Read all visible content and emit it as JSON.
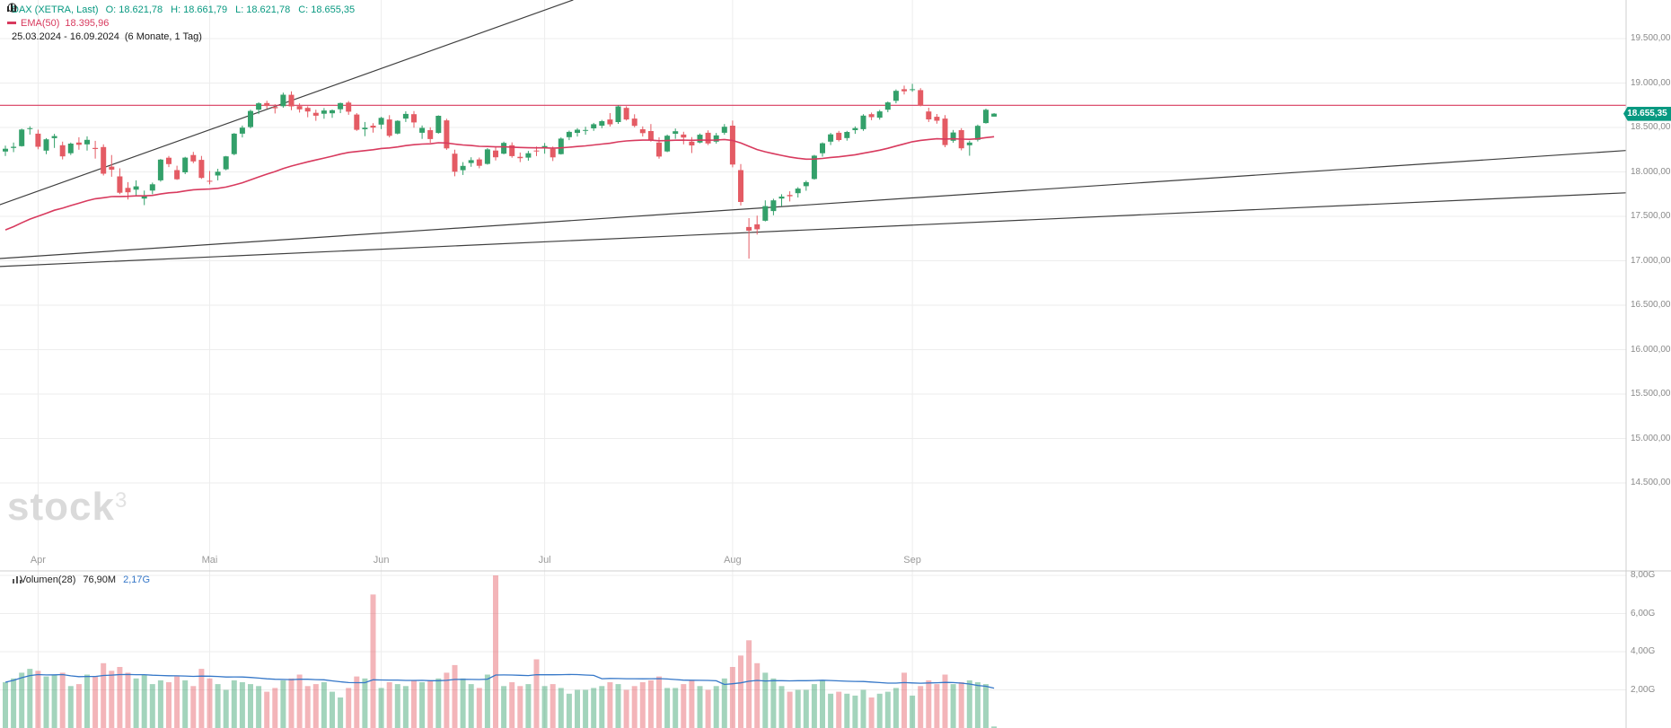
{
  "header": {
    "symbol": "DAX (XETRA, Last)",
    "ohlc": [
      {
        "label": "O:",
        "value": "18.621,78"
      },
      {
        "label": "H:",
        "value": "18.661,79"
      },
      {
        "label": "L:",
        "value": "18.621,78"
      },
      {
        "label": "C:",
        "value": "18.655,35"
      }
    ],
    "indicator": {
      "name": "EMA(50)",
      "value": "18.395,96"
    },
    "range": {
      "dates": "25.03.2024 - 16.09.2024",
      "interval": "(6 Monate, 1 Tag)"
    }
  },
  "price_axis": {
    "labels": [
      {
        "text": "19.500,00",
        "value": 19500
      },
      {
        "text": "19.000,00",
        "value": 19000
      },
      {
        "text": "18.500,00",
        "value": 18500
      },
      {
        "text": "18.000,00",
        "value": 18000
      },
      {
        "text": "17.500,00",
        "value": 17500
      },
      {
        "text": "17.000,00",
        "value": 17000
      },
      {
        "text": "16.500,00",
        "value": 16500
      },
      {
        "text": "16.000,00",
        "value": 16000
      },
      {
        "text": "15.500,00",
        "value": 15500
      },
      {
        "text": "15.000,00",
        "value": 15000
      },
      {
        "text": "14.500,00",
        "value": 14500
      }
    ],
    "badge": {
      "text": "18.655,35"
    }
  },
  "volume_axis": {
    "labels": [
      {
        "text": "8,00G",
        "value": 8
      },
      {
        "text": "6,00G",
        "value": 6
      },
      {
        "text": "4,00G",
        "value": 4
      },
      {
        "text": "2,00G",
        "value": 2
      }
    ]
  },
  "x_axis": {
    "months": [
      {
        "label": "Apr",
        "month": 4
      },
      {
        "label": "Mai",
        "month": 5
      },
      {
        "label": "Jun",
        "month": 6
      },
      {
        "label": "Jul",
        "month": 7
      },
      {
        "label": "Aug",
        "month": 8
      },
      {
        "label": "Sep",
        "month": 9
      }
    ]
  },
  "volume_header": {
    "name": "Volumen(28)",
    "current": "76,90M",
    "average": "2,17G"
  },
  "watermark": {
    "text": "stock",
    "sup": "3"
  },
  "colors": {
    "up": "#33a06a",
    "down": "#e45b64",
    "ema": "#d83a5e",
    "hline": "#d83a5e",
    "trend": "#3f3f3f",
    "volma": "#3577c8",
    "badge_bg": "#089981",
    "quote_text": "#089981",
    "axis_text": "#8a8a8a",
    "grid": "#ededed",
    "separator": "#cfcfcf"
  },
  "chart_data": {
    "type": "candlestick",
    "symbol": "DAX (XETRA)",
    "interval": "1 Tag",
    "date_start": "2024-03-25",
    "date_end": "2024-09-16",
    "price_ylim": [
      13570,
      19935
    ],
    "price_gridline_step": 500,
    "volume_unit": "G",
    "volume_ylim": [
      0,
      8.25
    ],
    "ema_period": 50,
    "ema_seed": 17310,
    "volume_ma_period": 28,
    "hline_price": 18750,
    "trendlines": [
      {
        "i1": -0.7,
        "p1": 17630,
        "i2": 69.5,
        "p2": 19935
      },
      {
        "i1": -0.7,
        "p1": 17025,
        "i2": 198.3,
        "p2": 18240
      },
      {
        "i1": -0.7,
        "p1": 16935,
        "i2": 198.3,
        "p2": 17765
      }
    ],
    "columns": [
      "date",
      "open",
      "high",
      "low",
      "close",
      "volume_G"
    ],
    "candles": [
      [
        "2024-03-25",
        18230,
        18295,
        18180,
        18261,
        2.4
      ],
      [
        "2024-03-26",
        18270,
        18330,
        18222,
        18283,
        2.6
      ],
      [
        "2024-03-27",
        18290,
        18487,
        18285,
        18477,
        2.9
      ],
      [
        "2024-03-28",
        18482,
        18513,
        18420,
        18492,
        3.1
      ],
      [
        "2024-04-02",
        18430,
        18475,
        18255,
        18283,
        3.0
      ],
      [
        "2024-04-03",
        18240,
        18380,
        18200,
        18367,
        2.7
      ],
      [
        "2024-04-04",
        18380,
        18428,
        18270,
        18403,
        2.8
      ],
      [
        "2024-04-05",
        18300,
        18340,
        18140,
        18175,
        2.9
      ],
      [
        "2024-04-08",
        18210,
        18330,
        18190,
        18318,
        2.2
      ],
      [
        "2024-04-09",
        18330,
        18390,
        18250,
        18305,
        2.3
      ],
      [
        "2024-04-10",
        18310,
        18400,
        18240,
        18361,
        2.8
      ],
      [
        "2024-04-11",
        18270,
        18350,
        18150,
        18258,
        2.7
      ],
      [
        "2024-04-12",
        18280,
        18310,
        17960,
        17980,
        3.4
      ],
      [
        "2024-04-15",
        18060,
        18190,
        17945,
        18026,
        3.0
      ],
      [
        "2024-04-16",
        17950,
        18040,
        17750,
        17766,
        3.2
      ],
      [
        "2024-04-17",
        17820,
        17885,
        17690,
        17770,
        2.9
      ],
      [
        "2024-04-18",
        17800,
        17905,
        17735,
        17837,
        2.6
      ],
      [
        "2024-04-19",
        17700,
        17790,
        17626,
        17737,
        2.8
      ],
      [
        "2024-04-22",
        17790,
        17880,
        17748,
        17861,
        2.3
      ],
      [
        "2024-04-23",
        17905,
        18145,
        17890,
        18138,
        2.5
      ],
      [
        "2024-04-24",
        18160,
        18180,
        18055,
        18088,
        2.4
      ],
      [
        "2024-04-25",
        18020,
        18070,
        17910,
        17917,
        2.7
      ],
      [
        "2024-04-26",
        17995,
        18170,
        17975,
        18161,
        2.5
      ],
      [
        "2024-04-29",
        18190,
        18225,
        18098,
        18118,
        2.2
      ],
      [
        "2024-04-30",
        18135,
        18180,
        17921,
        17932,
        3.1
      ],
      [
        "2024-05-02",
        17900,
        18010,
        17860,
        17897,
        2.6
      ],
      [
        "2024-05-03",
        17960,
        18035,
        17905,
        18002,
        2.3
      ],
      [
        "2024-05-06",
        18030,
        18180,
        18018,
        18175,
        2.0
      ],
      [
        "2024-05-07",
        18200,
        18437,
        18188,
        18430,
        2.5
      ],
      [
        "2024-05-08",
        18430,
        18521,
        18388,
        18498,
        2.4
      ],
      [
        "2024-05-09",
        18505,
        18699,
        18490,
        18686,
        2.3
      ],
      [
        "2024-05-10",
        18700,
        18784,
        18651,
        18772,
        2.2
      ],
      [
        "2024-05-13",
        18775,
        18801,
        18712,
        18742,
        1.9
      ],
      [
        "2024-05-14",
        18730,
        18762,
        18658,
        18716,
        2.1
      ],
      [
        "2024-05-15",
        18740,
        18892,
        18722,
        18869,
        2.5
      ],
      [
        "2024-05-16",
        18868,
        18906,
        18695,
        18738,
        2.6
      ],
      [
        "2024-05-17",
        18740,
        18772,
        18668,
        18704,
        2.8
      ],
      [
        "2024-05-21",
        18720,
        18738,
        18615,
        18680,
        2.2
      ],
      [
        "2024-05-22",
        18665,
        18700,
        18575,
        18633,
        2.3
      ],
      [
        "2024-05-23",
        18655,
        18718,
        18598,
        18691,
        2.4
      ],
      [
        "2024-05-24",
        18660,
        18702,
        18608,
        18694,
        1.9
      ],
      [
        "2024-05-27",
        18705,
        18780,
        18662,
        18775,
        1.6
      ],
      [
        "2024-05-28",
        18780,
        18798,
        18642,
        18678,
        2.1
      ],
      [
        "2024-05-29",
        18645,
        18662,
        18462,
        18473,
        2.7
      ],
      [
        "2024-05-30",
        18480,
        18562,
        18402,
        18497,
        2.6
      ],
      [
        "2024-05-31",
        18520,
        18548,
        18442,
        18498,
        7.0
      ],
      [
        "2024-06-03",
        18532,
        18620,
        18482,
        18608,
        2.1
      ],
      [
        "2024-06-04",
        18590,
        18638,
        18388,
        18406,
        2.4
      ],
      [
        "2024-06-05",
        18432,
        18581,
        18422,
        18575,
        2.3
      ],
      [
        "2024-06-06",
        18600,
        18682,
        18562,
        18653,
        2.2
      ],
      [
        "2024-06-07",
        18650,
        18684,
        18498,
        18557,
        2.5
      ],
      [
        "2024-06-10",
        18440,
        18522,
        18372,
        18495,
        2.4
      ],
      [
        "2024-06-11",
        18470,
        18502,
        18328,
        18370,
        2.5
      ],
      [
        "2024-06-12",
        18438,
        18636,
        18430,
        18631,
        2.6
      ],
      [
        "2024-06-13",
        18580,
        18598,
        18248,
        18265,
        2.9
      ],
      [
        "2024-06-14",
        18205,
        18250,
        17951,
        18002,
        3.3
      ],
      [
        "2024-06-17",
        18020,
        18110,
        17966,
        18068,
        2.6
      ],
      [
        "2024-06-18",
        18100,
        18165,
        18058,
        18132,
        2.3
      ],
      [
        "2024-06-19",
        18140,
        18162,
        18040,
        18068,
        2.1
      ],
      [
        "2024-06-20",
        18090,
        18268,
        18082,
        18254,
        2.8
      ],
      [
        "2024-06-21",
        18240,
        18278,
        18128,
        18164,
        8.0
      ],
      [
        "2024-06-24",
        18205,
        18340,
        18198,
        18326,
        2.2
      ],
      [
        "2024-06-25",
        18300,
        18332,
        18160,
        18178,
        2.4
      ],
      [
        "2024-06-26",
        18170,
        18218,
        18110,
        18155,
        2.2
      ],
      [
        "2024-06-27",
        18160,
        18236,
        18126,
        18210,
        2.3
      ],
      [
        "2024-06-28",
        18240,
        18285,
        18178,
        18235,
        3.6
      ],
      [
        "2024-07-01",
        18270,
        18325,
        18205,
        18291,
        2.2
      ],
      [
        "2024-07-02",
        18260,
        18286,
        18122,
        18164,
        2.3
      ],
      [
        "2024-07-03",
        18200,
        18388,
        18195,
        18375,
        2.1
      ],
      [
        "2024-07-04",
        18390,
        18465,
        18358,
        18450,
        1.8
      ],
      [
        "2024-07-05",
        18440,
        18492,
        18398,
        18475,
        2.0
      ],
      [
        "2024-07-08",
        18470,
        18508,
        18418,
        18472,
        2.0
      ],
      [
        "2024-07-09",
        18490,
        18552,
        18462,
        18536,
        2.1
      ],
      [
        "2024-07-10",
        18520,
        18585,
        18492,
        18571,
        2.2
      ],
      [
        "2024-07-11",
        18590,
        18662,
        18510,
        18535,
        2.4
      ],
      [
        "2024-07-12",
        18560,
        18748,
        18540,
        18737,
        2.3
      ],
      [
        "2024-07-15",
        18720,
        18738,
        18578,
        18590,
        2.0
      ],
      [
        "2024-07-16",
        18600,
        18648,
        18502,
        18518,
        2.2
      ],
      [
        "2024-07-17",
        18480,
        18512,
        18398,
        18437,
        2.4
      ],
      [
        "2024-07-18",
        18460,
        18538,
        18340,
        18354,
        2.5
      ],
      [
        "2024-07-19",
        18330,
        18390,
        18148,
        18172,
        2.7
      ],
      [
        "2024-07-22",
        18230,
        18420,
        18222,
        18407,
        2.1
      ],
      [
        "2024-07-23",
        18430,
        18488,
        18372,
        18458,
        2.1
      ],
      [
        "2024-07-24",
        18420,
        18452,
        18310,
        18387,
        2.3
      ],
      [
        "2024-07-25",
        18340,
        18392,
        18212,
        18298,
        2.5
      ],
      [
        "2024-07-26",
        18330,
        18432,
        18322,
        18418,
        2.2
      ],
      [
        "2024-07-29",
        18440,
        18468,
        18302,
        18320,
        2.0
      ],
      [
        "2024-07-30",
        18340,
        18438,
        18318,
        18411,
        2.2
      ],
      [
        "2024-07-31",
        18440,
        18538,
        18418,
        18508,
        2.6
      ],
      [
        "2024-08-01",
        18520,
        18578,
        18052,
        18083,
        3.2
      ],
      [
        "2024-08-02",
        18020,
        18088,
        17622,
        17661,
        3.8
      ],
      [
        "2024-08-05",
        17380,
        17480,
        17024,
        17339,
        4.6
      ],
      [
        "2024-08-06",
        17410,
        17508,
        17295,
        17354,
        3.4
      ],
      [
        "2024-08-07",
        17450,
        17680,
        17442,
        17615,
        2.9
      ],
      [
        "2024-08-08",
        17560,
        17698,
        17512,
        17680,
        2.6
      ],
      [
        "2024-08-09",
        17700,
        17748,
        17612,
        17722,
        2.2
      ],
      [
        "2024-08-12",
        17740,
        17782,
        17668,
        17726,
        1.9
      ],
      [
        "2024-08-13",
        17760,
        17828,
        17712,
        17812,
        2.0
      ],
      [
        "2024-08-14",
        17840,
        17902,
        17788,
        17885,
        2.0
      ],
      [
        "2024-08-15",
        17920,
        18192,
        17912,
        18183,
        2.3
      ],
      [
        "2024-08-16",
        18210,
        18332,
        18172,
        18322,
        2.5
      ],
      [
        "2024-08-19",
        18340,
        18438,
        18302,
        18422,
        1.8
      ],
      [
        "2024-08-20",
        18440,
        18462,
        18342,
        18358,
        1.9
      ],
      [
        "2024-08-21",
        18380,
        18462,
        18352,
        18449,
        1.8
      ],
      [
        "2024-08-22",
        18470,
        18512,
        18428,
        18493,
        1.7
      ],
      [
        "2024-08-23",
        18480,
        18648,
        18462,
        18633,
        2.0
      ],
      [
        "2024-08-26",
        18650,
        18668,
        18582,
        18617,
        1.6
      ],
      [
        "2024-08-27",
        18610,
        18698,
        18588,
        18681,
        1.8
      ],
      [
        "2024-08-28",
        18700,
        18792,
        18672,
        18782,
        1.9
      ],
      [
        "2024-08-29",
        18800,
        18928,
        18772,
        18912,
        2.1
      ],
      [
        "2024-08-30",
        18930,
        18971,
        18872,
        18907,
        2.9
      ],
      [
        "2024-09-02",
        18920,
        18991,
        18902,
        18930,
        1.7
      ],
      [
        "2024-09-03",
        18920,
        18942,
        18738,
        18747,
        2.2
      ],
      [
        "2024-09-04",
        18680,
        18722,
        18562,
        18591,
        2.5
      ],
      [
        "2024-09-05",
        18620,
        18652,
        18542,
        18576,
        2.3
      ],
      [
        "2024-09-06",
        18600,
        18638,
        18278,
        18302,
        2.8
      ],
      [
        "2024-09-09",
        18350,
        18472,
        18328,
        18443,
        2.3
      ],
      [
        "2024-09-10",
        18470,
        18492,
        18242,
        18266,
        2.4
      ],
      [
        "2024-09-11",
        18300,
        18352,
        18182,
        18330,
        2.5
      ],
      [
        "2024-09-12",
        18360,
        18532,
        18342,
        18518,
        2.4
      ],
      [
        "2024-09-13",
        18550,
        18712,
        18542,
        18699,
        2.3
      ],
      [
        "2024-09-16",
        18621.78,
        18661.79,
        18621.78,
        18655.35,
        0.08
      ]
    ]
  }
}
